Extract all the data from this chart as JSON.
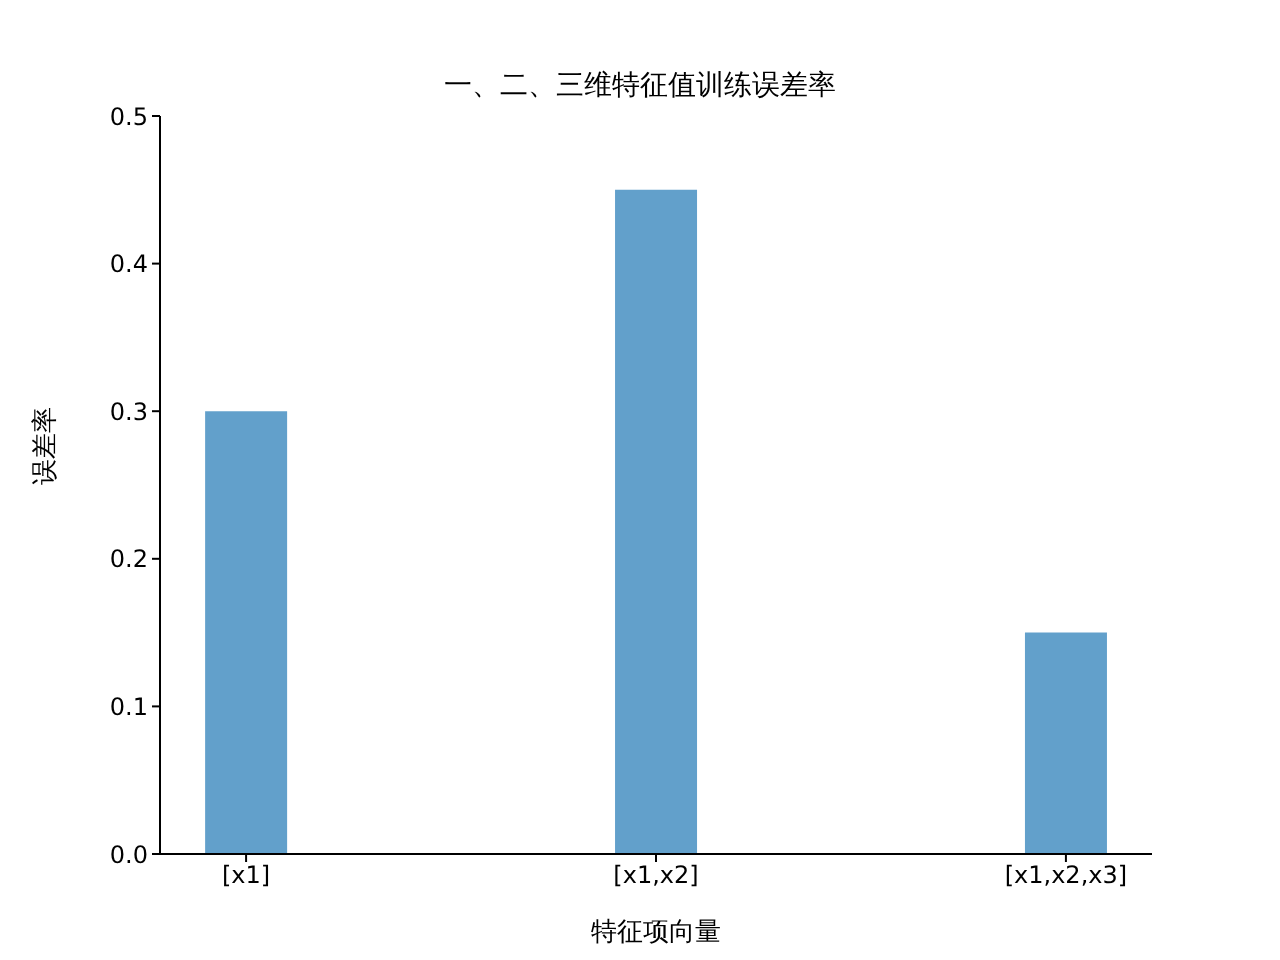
{
  "chart_data": {
    "type": "bar",
    "title": "一、二、三维特征值训练误差率",
    "xlabel": "特征项向量",
    "ylabel": "误差率",
    "categories": [
      "[x1]",
      "[x1,x2]",
      "[x1,x2,x3]"
    ],
    "values": [
      0.3,
      0.45,
      0.15
    ],
    "color": "#62a0cb",
    "ylim": [
      0,
      0.5
    ],
    "yticks": [
      {
        "value": 0,
        "label": "0.0"
      },
      {
        "value": 0.1,
        "label": "0.1"
      },
      {
        "value": 0.2,
        "label": "0.2"
      },
      {
        "value": 0.3,
        "label": "0.3"
      },
      {
        "value": 0.4,
        "label": "0.4"
      },
      {
        "value": 0.5,
        "label": "0.5"
      }
    ],
    "grid": false,
    "legend": false
  }
}
